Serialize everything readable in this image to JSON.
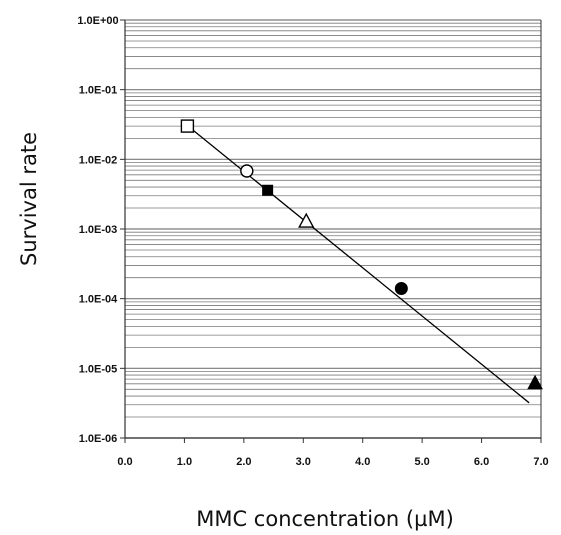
{
  "chart_data": {
    "type": "scatter",
    "xlabel": "MMC concentration (µM)",
    "ylabel": "Survival rate",
    "xlim": [
      0,
      7
    ],
    "ylim": [
      1e-06,
      1
    ],
    "yscale": "log",
    "grid": "horizontal minor and major lines on log axis",
    "x_tick_labels": [
      "0.0",
      "1.0",
      "2.0",
      "3.0",
      "4.0",
      "5.0",
      "6.0",
      "7.0"
    ],
    "y_tick_labels": [
      "1.0E+00",
      "1.0E-01",
      "1.0E-02",
      "1.0E-03",
      "1.0E-04",
      "1.0E-05",
      "1.0E-06"
    ],
    "points": [
      {
        "x": 1.05,
        "y": 0.03,
        "marker": "open-square"
      },
      {
        "x": 2.05,
        "y": 0.0068,
        "marker": "open-circle"
      },
      {
        "x": 2.4,
        "y": 0.0036,
        "marker": "filled-square"
      },
      {
        "x": 3.05,
        "y": 0.0013,
        "marker": "open-triangle"
      },
      {
        "x": 4.65,
        "y": 0.00014,
        "marker": "filled-circle"
      },
      {
        "x": 6.9,
        "y": 6.2e-06,
        "marker": "filled-triangle"
      }
    ],
    "fit_line": {
      "x": [
        1.0,
        6.8
      ],
      "y": [
        0.033,
        3.2e-06
      ]
    }
  },
  "colors": {
    "grid": "#7a7a7a",
    "axis": "#333333",
    "marker": "#000000",
    "line": "#000000"
  }
}
